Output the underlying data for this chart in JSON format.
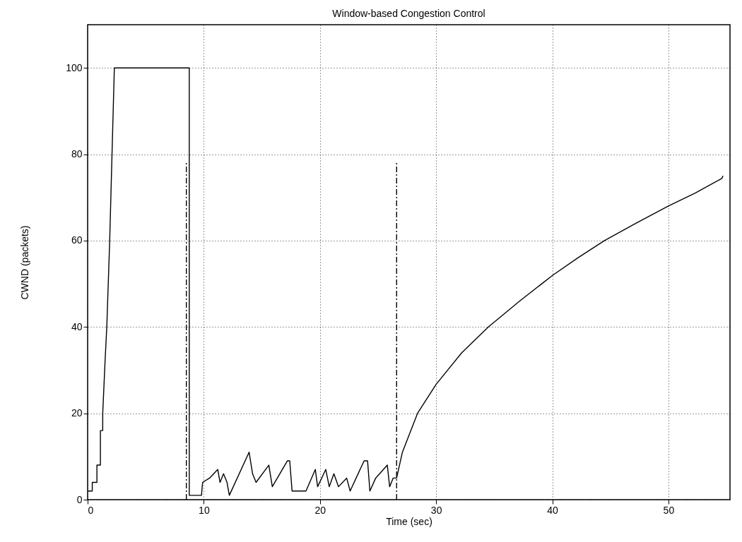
{
  "chart_data": {
    "type": "line",
    "title": "Window-based Congestion Control",
    "xlabel": "Time (sec)",
    "ylabel": "CWND (packets)",
    "xlim": [
      0,
      55.3
    ],
    "xticks": [
      0,
      10,
      20,
      30,
      40,
      50
    ],
    "ylim": [
      0,
      110
    ],
    "yticks": [
      0,
      20,
      40,
      60,
      80,
      100
    ],
    "grid": true,
    "line_style": "solid",
    "series": [
      {
        "color": "#000000",
        "x": [
          0,
          0.4,
          0.4,
          0.8,
          0.8,
          1.1,
          1.1,
          1.3,
          1.3,
          1.5,
          1.65,
          1.9,
          2.1,
          2.3,
          8.75,
          8.75,
          9.8,
          9.9,
          10.5,
          11.2,
          11.4,
          11.7,
          12.0,
          12.2,
          13.9,
          14.2,
          14.5,
          15.6,
          15.9,
          17.2,
          17.4,
          17.6,
          18.8,
          19.6,
          19.8,
          20.5,
          20.8,
          21.2,
          21.6,
          22.3,
          22.6,
          23.8,
          24.1,
          24.3,
          24.8,
          25.8,
          26.0,
          26.3,
          26.6,
          27.1,
          28.4,
          30.0,
          32.2,
          34.5,
          37.2,
          40.0,
          42.2,
          44.5,
          47.2,
          50.0,
          52.3,
          54.6,
          54.7
        ],
        "values": [
          2,
          2,
          4,
          4,
          8,
          8,
          16,
          16,
          20,
          32,
          40,
          60,
          80,
          100,
          100,
          1,
          1,
          4,
          5,
          7,
          4,
          6,
          4,
          1,
          11,
          6,
          4,
          8,
          3,
          9,
          9,
          2,
          2,
          7,
          3,
          7,
          3,
          6,
          3,
          5,
          2,
          9,
          9,
          2,
          5,
          8,
          3,
          5,
          5,
          11,
          20,
          26.7,
          34,
          40,
          46,
          51.9,
          56,
          60,
          64,
          68,
          71,
          74.4,
          75
        ]
      },
      {
        "color": "#000000",
        "line_style": "dashed",
        "x": [
          8.5,
          8.5
        ],
        "values": [
          0,
          78
        ]
      },
      {
        "color": "#000000",
        "line_style": "dashed",
        "x": [
          26.6,
          26.6
        ],
        "values": [
          0,
          78
        ]
      }
    ]
  }
}
